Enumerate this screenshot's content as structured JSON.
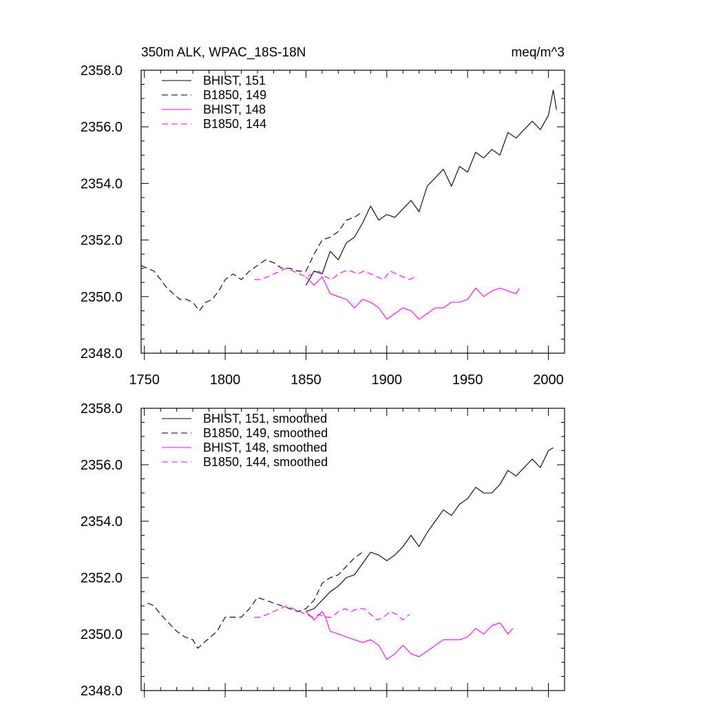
{
  "chart_data": [
    {
      "type": "line",
      "title_left": "350m ALK, WPAC_18S-18N",
      "title_right": "meq/m^3",
      "xlim": [
        1748,
        2010
      ],
      "ylim": [
        2348,
        2358
      ],
      "x_ticks": [
        1750,
        1800,
        1850,
        1900,
        1950,
        2000
      ],
      "y_ticks": [
        "2348.0",
        "2350.0",
        "2352.0",
        "2354.0",
        "2356.0",
        "2358.0"
      ],
      "legend_position": "top-left",
      "series": [
        {
          "name": "BHIST, 151",
          "color": "#000000",
          "dash": "solid",
          "x": [
            1850,
            1855,
            1860,
            1865,
            1870,
            1875,
            1880,
            1885,
            1890,
            1895,
            1900,
            1905,
            1910,
            1915,
            1920,
            1925,
            1930,
            1935,
            1940,
            1945,
            1950,
            1955,
            1960,
            1965,
            1970,
            1975,
            1980,
            1985,
            1990,
            1995,
            2000,
            2003,
            2005
          ],
          "y": [
            2350.4,
            2350.9,
            2350.8,
            2351.6,
            2351.3,
            2351.9,
            2352.1,
            2352.6,
            2353.2,
            2352.7,
            2352.9,
            2352.8,
            2353.1,
            2353.4,
            2353.0,
            2353.9,
            2354.2,
            2354.5,
            2353.9,
            2354.6,
            2354.4,
            2355.1,
            2354.9,
            2355.2,
            2355.0,
            2355.8,
            2355.6,
            2355.9,
            2356.2,
            2355.9,
            2356.4,
            2357.3,
            2356.6
          ]
        },
        {
          "name": "B1850, 149",
          "color": "#000000",
          "dash": "dashed",
          "x": [
            1748,
            1752,
            1756,
            1760,
            1764,
            1768,
            1772,
            1776,
            1780,
            1784,
            1788,
            1792,
            1796,
            1800,
            1805,
            1810,
            1815,
            1820,
            1825,
            1830,
            1835,
            1840,
            1845,
            1850,
            1855,
            1860,
            1865,
            1870,
            1875,
            1880,
            1885
          ],
          "y": [
            2351.1,
            2351.0,
            2350.9,
            2350.6,
            2350.3,
            2350.1,
            2349.9,
            2349.9,
            2349.8,
            2349.5,
            2349.8,
            2349.9,
            2350.2,
            2350.6,
            2350.8,
            2350.6,
            2350.9,
            2351.1,
            2351.3,
            2351.2,
            2351.0,
            2351.0,
            2350.9,
            2350.9,
            2351.5,
            2352.0,
            2352.1,
            2352.3,
            2352.7,
            2352.8,
            2353.0
          ]
        },
        {
          "name": "BHIST, 148",
          "color": "#ff00ff",
          "dash": "solid",
          "x": [
            1850,
            1855,
            1860,
            1865,
            1870,
            1875,
            1880,
            1885,
            1890,
            1895,
            1900,
            1905,
            1910,
            1915,
            1920,
            1925,
            1930,
            1935,
            1940,
            1945,
            1950,
            1955,
            1960,
            1965,
            1970,
            1975,
            1980,
            1982
          ],
          "y": [
            2350.7,
            2350.4,
            2350.7,
            2350.1,
            2350.0,
            2349.9,
            2349.6,
            2349.9,
            2349.8,
            2349.6,
            2349.2,
            2349.4,
            2349.6,
            2349.5,
            2349.2,
            2349.4,
            2349.6,
            2349.6,
            2349.8,
            2349.8,
            2349.9,
            2350.3,
            2350.0,
            2350.2,
            2350.3,
            2350.2,
            2350.1,
            2350.3
          ]
        },
        {
          "name": "B1850, 144",
          "color": "#ff00ff",
          "dash": "dashed",
          "x": [
            1818,
            1822,
            1826,
            1830,
            1834,
            1838,
            1842,
            1846,
            1850,
            1854,
            1858,
            1862,
            1866,
            1870,
            1874,
            1878,
            1882,
            1886,
            1890,
            1894,
            1898,
            1902,
            1906,
            1910,
            1914,
            1918
          ],
          "y": [
            2350.6,
            2350.6,
            2350.7,
            2350.8,
            2350.9,
            2351.0,
            2350.9,
            2350.8,
            2350.7,
            2350.8,
            2350.9,
            2350.7,
            2350.6,
            2350.8,
            2350.9,
            2350.9,
            2350.8,
            2350.9,
            2350.8,
            2350.7,
            2350.6,
            2350.9,
            2350.8,
            2350.7,
            2350.6,
            2350.7
          ]
        }
      ]
    },
    {
      "type": "line",
      "xlim": [
        1748,
        2010
      ],
      "ylim": [
        2348,
        2358
      ],
      "y_ticks": [
        "2348.0",
        "2350.0",
        "2352.0",
        "2354.0",
        "2356.0",
        "2358.0"
      ],
      "legend_position": "top-left",
      "series": [
        {
          "name": "BHIST, 151, smoothed",
          "color": "#000000",
          "dash": "solid",
          "x": [
            1850,
            1855,
            1860,
            1865,
            1870,
            1875,
            1880,
            1885,
            1890,
            1895,
            1900,
            1905,
            1910,
            1915,
            1920,
            1925,
            1930,
            1935,
            1940,
            1945,
            1950,
            1955,
            1960,
            1965,
            1970,
            1975,
            1980,
            1985,
            1990,
            1995,
            2000,
            2003
          ],
          "y": [
            2350.8,
            2350.9,
            2351.2,
            2351.5,
            2351.7,
            2352.0,
            2352.1,
            2352.5,
            2352.9,
            2352.8,
            2352.6,
            2352.8,
            2353.1,
            2353.5,
            2353.1,
            2353.6,
            2354.0,
            2354.4,
            2354.2,
            2354.6,
            2354.8,
            2355.2,
            2355.0,
            2355.0,
            2355.3,
            2355.8,
            2355.6,
            2355.9,
            2356.2,
            2355.9,
            2356.5,
            2356.6
          ]
        },
        {
          "name": "B1850, 149, smoothed",
          "color": "#000000",
          "dash": "dashed",
          "x": [
            1752,
            1756,
            1760,
            1765,
            1770,
            1775,
            1780,
            1783,
            1787,
            1791,
            1795,
            1800,
            1805,
            1810,
            1815,
            1820,
            1825,
            1830,
            1835,
            1840,
            1845,
            1850,
            1855,
            1860,
            1865,
            1870,
            1875,
            1880,
            1885
          ],
          "y": [
            2351.1,
            2351.0,
            2350.7,
            2350.4,
            2350.1,
            2349.9,
            2349.8,
            2349.5,
            2349.7,
            2349.9,
            2350.1,
            2350.6,
            2350.6,
            2350.6,
            2350.9,
            2351.3,
            2351.2,
            2351.1,
            2351.0,
            2350.9,
            2350.8,
            2350.9,
            2351.2,
            2351.8,
            2352.0,
            2352.1,
            2352.4,
            2352.7,
            2352.9
          ]
        },
        {
          "name": "BHIST, 148, smoothed",
          "color": "#ff00ff",
          "dash": "solid",
          "x": [
            1850,
            1855,
            1860,
            1862,
            1865,
            1870,
            1875,
            1880,
            1885,
            1890,
            1895,
            1900,
            1905,
            1910,
            1915,
            1920,
            1925,
            1930,
            1935,
            1940,
            1945,
            1950,
            1955,
            1960,
            1965,
            1970,
            1975,
            1978
          ],
          "y": [
            2350.8,
            2350.5,
            2350.8,
            2350.6,
            2350.1,
            2350.0,
            2349.9,
            2349.8,
            2349.7,
            2349.8,
            2349.6,
            2349.1,
            2349.3,
            2349.6,
            2349.3,
            2349.2,
            2349.4,
            2349.6,
            2349.8,
            2349.8,
            2349.8,
            2349.9,
            2350.2,
            2350.0,
            2350.3,
            2350.4,
            2350.0,
            2350.2
          ]
        },
        {
          "name": "B1850, 144, smoothed",
          "color": "#ff00ff",
          "dash": "dashed",
          "x": [
            1818,
            1822,
            1826,
            1830,
            1834,
            1838,
            1842,
            1846,
            1850,
            1854,
            1858,
            1862,
            1866,
            1870,
            1874,
            1878,
            1882,
            1886,
            1890,
            1894,
            1898,
            1902,
            1906,
            1910,
            1914
          ],
          "y": [
            2350.6,
            2350.6,
            2350.7,
            2350.8,
            2350.9,
            2351.0,
            2350.9,
            2350.8,
            2350.7,
            2350.6,
            2350.7,
            2350.6,
            2350.6,
            2350.8,
            2350.9,
            2350.8,
            2350.9,
            2350.9,
            2350.7,
            2350.5,
            2350.6,
            2350.8,
            2350.7,
            2350.5,
            2350.7
          ]
        }
      ]
    }
  ]
}
